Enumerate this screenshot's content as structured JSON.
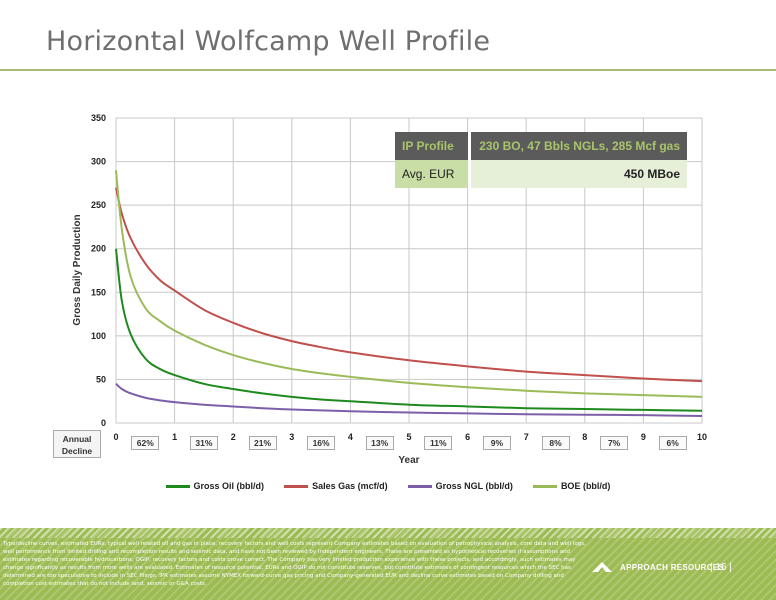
{
  "page": {
    "title": "Horizontal Wolfcamp Well Profile",
    "footer_text": "Type/decline curves, estimated EURs, typical well related oil and gas in place, recovery factors and well costs represent Company estimates based on evaluation of petrophysical analysis, core data and well logs, well performance from limited drilling and recompletion results and seismic data, and have not been reviewed by independent engineers. These are presented as hypothetical recoveries if assumptions and estimates regarding recoverable hydrocarbons, OGIP, recovery factors and costs prove correct. The Company has very limited production experience with these projects, and accordingly, such estimates may change significantly as results from more wells are evaluated. Estimates of resource potential, EURs and OGIP do not constitute reserves, but constitute estimates of contingent resources which the SEC has determined are too speculative to include in SEC filings. IPR estimates assume NYMEX forward-curve gas pricing and Company-generated EUR and decline curve estimates based on Company drilling and completion cost estimates that do not include land, seismic or G&A costs.",
    "brand": "APPROACH RESOURCES",
    "page_number": "| 16 |"
  },
  "ip_table": {
    "header_label": "IP Profile",
    "header_value": "230 BO, 47 Bbls NGLs, 285 Mcf gas",
    "row_label": "Avg. EUR",
    "row_value": "450 MBoe"
  },
  "decline": {
    "label_line1": "Annual",
    "label_line2": "Decline",
    "values": [
      "62%",
      "31%",
      "21%",
      "16%",
      "13%",
      "11%",
      "9%",
      "8%",
      "7%",
      "6%"
    ]
  },
  "chart_data": {
    "type": "line",
    "xlabel": "Year",
    "ylabel": "Gross Daily Production",
    "xlim": [
      0,
      10
    ],
    "ylim": [
      0,
      350
    ],
    "xticks": [
      0,
      1,
      2,
      3,
      4,
      5,
      6,
      7,
      8,
      9,
      10
    ],
    "yticks": [
      0,
      50,
      100,
      150,
      200,
      250,
      300,
      350
    ],
    "grid": true,
    "legend_position": "bottom",
    "x": [
      0,
      0.1,
      0.25,
      0.5,
      0.75,
      1,
      1.5,
      2,
      2.5,
      3,
      3.5,
      4,
      5,
      6,
      7,
      8,
      9,
      10
    ],
    "series": [
      {
        "name": "Gross Oil (bbl/d)",
        "color": "#1e8a1e",
        "values": [
          200,
          140,
          102,
          74,
          62,
          55,
          45,
          39,
          34,
          30,
          27,
          25,
          21,
          19,
          17,
          16,
          15,
          14
        ]
      },
      {
        "name": "Sales Gas (mcf/d)",
        "color": "#c0504d",
        "values": [
          270,
          240,
          212,
          183,
          164,
          152,
          130,
          115,
          103,
          94,
          87,
          81,
          72,
          65,
          59,
          55,
          51,
          48
        ]
      },
      {
        "name": "Gross NGL (bbl/d)",
        "color": "#7c5fa8",
        "values": [
          45,
          39,
          34,
          29,
          26,
          24,
          21,
          19,
          17,
          15.5,
          14.5,
          13.5,
          12,
          11,
          10,
          9.5,
          9,
          8
        ]
      },
      {
        "name": "BOE (bbl/d)",
        "color": "#9bbb59",
        "values": [
          290,
          222,
          168,
          132,
          117,
          106,
          90,
          78,
          69,
          62,
          57,
          53,
          46,
          41,
          37,
          34,
          32,
          30
        ]
      }
    ]
  }
}
